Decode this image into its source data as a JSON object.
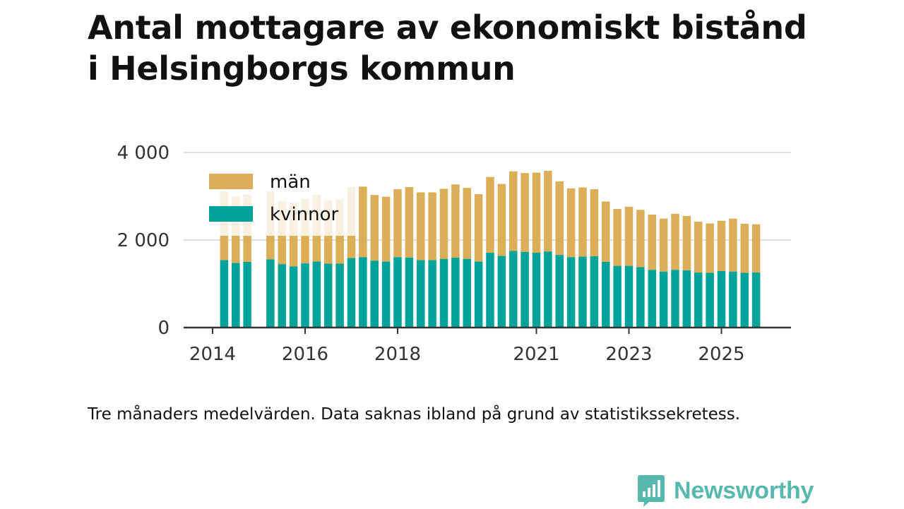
{
  "title_lines": [
    "Antal mottagare av ekonomiskt bistånd",
    "i Helsingborgs kommun"
  ],
  "footnote": "Tre månaders medelvärden. Data saknas ibland på grund av statistikssekretess.",
  "brand": {
    "name": "Newsworthy",
    "icon": "newsworthy-logo-icon",
    "color": "#57b8ae"
  },
  "colors": {
    "men": "#ddae58",
    "women": "#00a39a",
    "grid": "#dddddd",
    "axis": "#333333"
  },
  "chart_data": {
    "type": "bar",
    "stacked": true,
    "title": "Antal mottagare av ekonomiskt bistånd i Helsingborgs kommun",
    "x_start": 2014.25,
    "x_step": 0.25,
    "ylim": [
      0,
      4000
    ],
    "yticks": [
      0,
      2000,
      4000
    ],
    "ytick_labels": [
      "0",
      "2 000",
      "4 000"
    ],
    "xticks": [
      2014,
      2016,
      2018,
      2021,
      2023,
      2025
    ],
    "xtick_labels": [
      "2014",
      "2016",
      "2018",
      "2021",
      "2023",
      "2025"
    ],
    "legend_position": "top-left",
    "series": [
      {
        "name": "kvinnor",
        "color": "#00a39a",
        "values": [
          1540,
          1480,
          1500,
          null,
          1560,
          1450,
          1400,
          1470,
          1510,
          1460,
          1460,
          1590,
          1610,
          1530,
          1510,
          1610,
          1600,
          1540,
          1540,
          1570,
          1600,
          1570,
          1510,
          1710,
          1640,
          1750,
          1730,
          1710,
          1740,
          1660,
          1610,
          1620,
          1630,
          1500,
          1410,
          1410,
          1380,
          1320,
          1280,
          1320,
          1310,
          1260,
          1250,
          1290,
          1280,
          1250,
          1260
        ]
      },
      {
        "name": "män",
        "color": "#ddae58",
        "values": [
          1570,
          1510,
          1540,
          null,
          1550,
          1440,
          1450,
          1470,
          1520,
          1450,
          1470,
          1620,
          1610,
          1500,
          1480,
          1550,
          1610,
          1550,
          1550,
          1600,
          1670,
          1620,
          1540,
          1730,
          1640,
          1820,
          1800,
          1830,
          1840,
          1680,
          1570,
          1580,
          1530,
          1380,
          1300,
          1350,
          1310,
          1260,
          1210,
          1280,
          1240,
          1160,
          1130,
          1150,
          1210,
          1120,
          1100
        ]
      }
    ]
  }
}
